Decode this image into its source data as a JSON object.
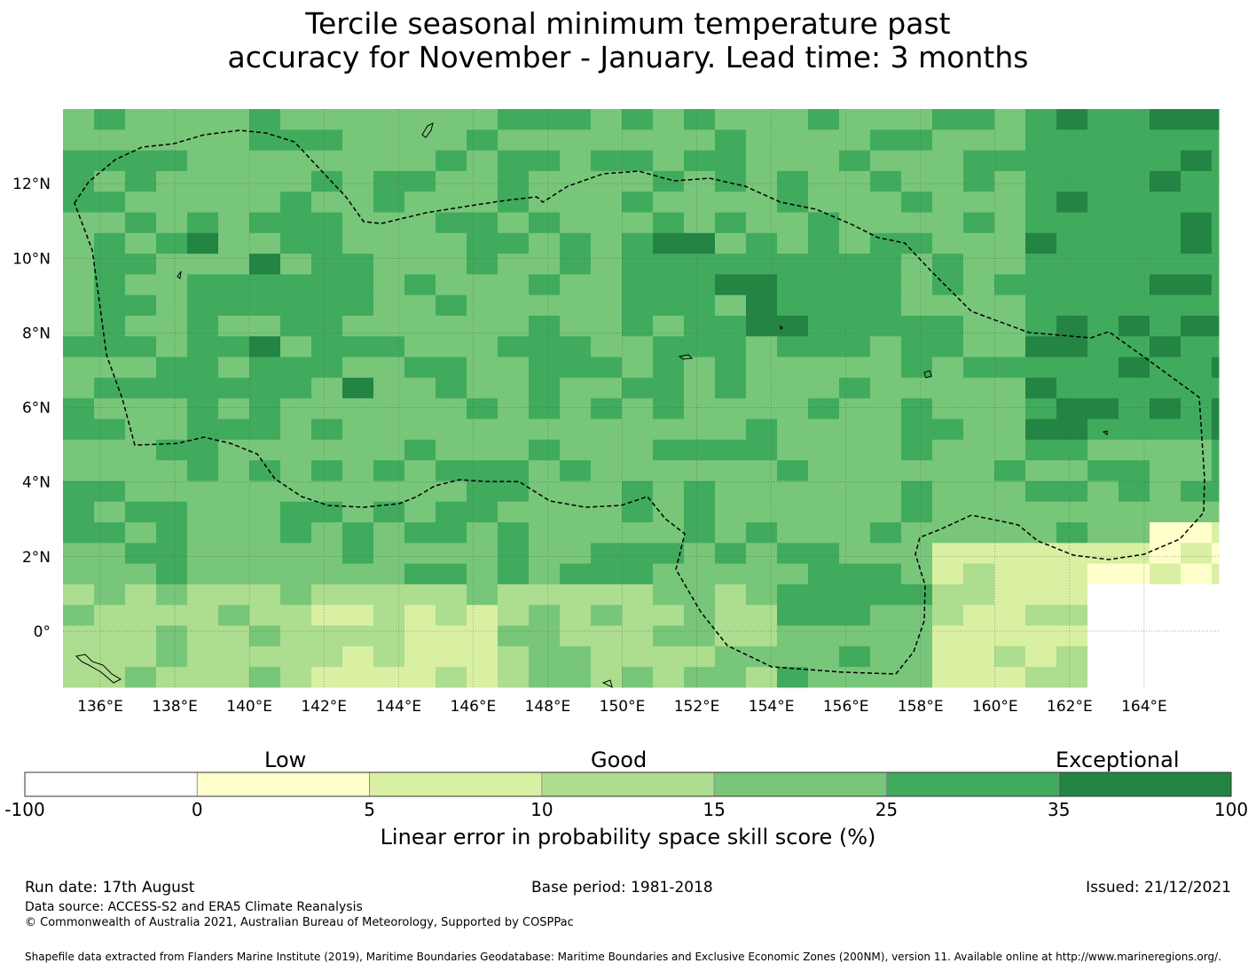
{
  "title_line1": "Tercile seasonal minimum temperature past",
  "title_line2": "accuracy for November - January. Lead time: 3 months",
  "map": {
    "lon_range": [
      135,
      166
    ],
    "lat_range": [
      -1.5,
      14
    ],
    "x_ticks": [
      "136°E",
      "138°E",
      "140°E",
      "142°E",
      "144°E",
      "146°E",
      "148°E",
      "150°E",
      "152°E",
      "154°E",
      "156°E",
      "158°E",
      "160°E",
      "162°E",
      "164°E"
    ],
    "x_tick_values": [
      136,
      138,
      140,
      142,
      144,
      146,
      148,
      150,
      152,
      154,
      156,
      158,
      160,
      162,
      164
    ],
    "y_ticks": [
      "12°N",
      "10°N",
      "8°N",
      "6°N",
      "4°N",
      "2°N",
      "0°"
    ],
    "y_tick_values": [
      12,
      10,
      8,
      6,
      4,
      2,
      0
    ],
    "grid": true,
    "boundary_style": "dashed",
    "boundary_color": "#000000"
  },
  "colorbar": {
    "category_labels": [
      "Low",
      "Good",
      "Exceptional"
    ],
    "tick_labels": [
      "-100",
      "0",
      "5",
      "10",
      "15",
      "25",
      "35",
      "100"
    ],
    "colors": [
      "#ffffff",
      "#ffffcc",
      "#d9f0a3",
      "#addd8e",
      "#78c679",
      "#41ab5d",
      "#238443"
    ],
    "label": "Linear error in probability space skill score (%)"
  },
  "footer": {
    "run_date": "Run date: 17th August",
    "base_period": "Base period: 1981-2018",
    "issued": "Issued: 21/12/2021",
    "data_source": "Data source: ACCESS-S2 and ERA5 Climate Reanalysis",
    "copyright": "© Commonwealth of Australia 2021, Australian Bureau of Meteorology, Supported by COSPPac",
    "shapefile": "Shapefile data extracted from Flanders Marine Institute (2019), Maritime Boundaries Geodatabase: Maritime Boundaries and Exclusive Economic Zones (200NM), version 11. Available online at http://www.marineregions.org/."
  }
}
